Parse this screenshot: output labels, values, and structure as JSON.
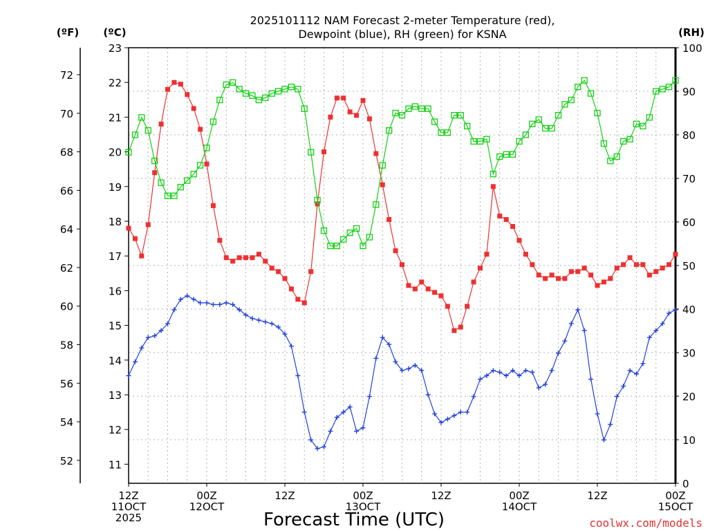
{
  "title_line1": "2025101112 NAM Forecast 2-meter Temperature (red),",
  "title_line2": "Dewpoint (blue), RH (green) for KSNA",
  "axis_units": {
    "f": "(ºF)",
    "c": "(ºC)",
    "rh": "(RH)"
  },
  "xlabel": "Forecast Time (UTC)",
  "watermark": "coolwx.com/models",
  "colors": {
    "temp": "#ee3030",
    "dewpoint": "#2040dd",
    "rh": "#10d010",
    "grid": "#b0b0b0"
  },
  "chart_data": {
    "type": "line",
    "x_hours": [
      0,
      1,
      2,
      3,
      4,
      5,
      6,
      7,
      8,
      9,
      10,
      11,
      12,
      13,
      14,
      15,
      16,
      17,
      18,
      19,
      20,
      21,
      22,
      23,
      24,
      25,
      26,
      27,
      28,
      29,
      30,
      31,
      32,
      33,
      34,
      35,
      36,
      37,
      38,
      39,
      40,
      41,
      42,
      43,
      44,
      45,
      46,
      47,
      48,
      49,
      50,
      51,
      52,
      53,
      54,
      55,
      56,
      57,
      58,
      59,
      60,
      61,
      62,
      63,
      64,
      65,
      66,
      67,
      68,
      69,
      70,
      71,
      72,
      73,
      74,
      75,
      76,
      77,
      78,
      79,
      80,
      81,
      82,
      83,
      84
    ],
    "xlim": [
      0,
      84
    ],
    "x_ticks": [
      {
        "hour": 0,
        "lines": [
          "12Z",
          "11OCT",
          "2025"
        ]
      },
      {
        "hour": 12,
        "lines": [
          "00Z",
          "12OCT"
        ]
      },
      {
        "hour": 24,
        "lines": [
          "12Z"
        ]
      },
      {
        "hour": 36,
        "lines": [
          "00Z",
          "13OCT"
        ]
      },
      {
        "hour": 48,
        "lines": [
          "12Z"
        ]
      },
      {
        "hour": 60,
        "lines": [
          "00Z",
          "14OCT"
        ]
      },
      {
        "hour": 72,
        "lines": [
          "12Z"
        ]
      },
      {
        "hour": 84,
        "lines": [
          "00Z",
          "15OCT"
        ]
      }
    ],
    "celsius_axis": {
      "ylim": [
        10.45,
        23.0
      ],
      "ticks": [
        11,
        12,
        13,
        14,
        15,
        16,
        17,
        18,
        19,
        20,
        21,
        22,
        23
      ]
    },
    "fahrenheit_ticks": [
      52,
      54,
      56,
      58,
      60,
      62,
      64,
      66,
      68,
      70,
      72
    ],
    "rh_axis": {
      "ylim": [
        0,
        100
      ],
      "ticks": [
        0,
        10,
        20,
        30,
        40,
        50,
        60,
        70,
        80,
        90,
        100
      ]
    },
    "series": [
      {
        "name": "Temperature",
        "axis": "celsius",
        "marker": "square-filled",
        "values": [
          17.8,
          17.5,
          17.0,
          17.9,
          19.4,
          20.8,
          21.8,
          22.0,
          21.95,
          21.65,
          21.25,
          20.65,
          19.65,
          18.45,
          17.45,
          16.95,
          16.85,
          16.95,
          16.95,
          16.95,
          17.05,
          16.85,
          16.65,
          16.55,
          16.35,
          16.05,
          15.75,
          15.65,
          16.55,
          18.5,
          20.0,
          21.0,
          21.55,
          21.55,
          21.15,
          21.05,
          21.48,
          20.95,
          19.95,
          19.05,
          18.05,
          17.15,
          16.75,
          16.15,
          16.05,
          16.25,
          16.05,
          15.95,
          15.85,
          15.55,
          14.85,
          14.95,
          15.55,
          16.25,
          16.65,
          17.05,
          19.0,
          18.15,
          18.05,
          17.85,
          17.45,
          17.05,
          16.75,
          16.45,
          16.35,
          16.45,
          16.35,
          16.35,
          16.55,
          16.55,
          16.65,
          16.45,
          16.15,
          16.25,
          16.35,
          16.65,
          16.75,
          16.95,
          16.75,
          16.75,
          16.45,
          16.55,
          16.65,
          16.75,
          17.05
        ]
      },
      {
        "name": "Dewpoint",
        "axis": "celsius",
        "marker": "plus",
        "values": [
          13.55,
          13.95,
          14.35,
          14.65,
          14.7,
          14.85,
          15.05,
          15.45,
          15.75,
          15.85,
          15.75,
          15.65,
          15.65,
          15.6,
          15.6,
          15.65,
          15.6,
          15.45,
          15.3,
          15.2,
          15.15,
          15.1,
          15.05,
          14.95,
          14.75,
          14.4,
          13.55,
          12.5,
          11.7,
          11.45,
          11.5,
          11.95,
          12.35,
          12.5,
          12.65,
          11.95,
          12.05,
          12.95,
          14.05,
          14.65,
          14.45,
          13.95,
          13.7,
          13.75,
          13.85,
          13.7,
          13.0,
          12.45,
          12.2,
          12.3,
          12.4,
          12.5,
          12.5,
          12.95,
          13.45,
          13.55,
          13.7,
          13.65,
          13.55,
          13.7,
          13.55,
          13.7,
          13.65,
          13.2,
          13.3,
          13.7,
          14.2,
          14.55,
          15.05,
          15.45,
          14.85,
          13.45,
          12.45,
          11.7,
          12.15,
          12.95,
          13.25,
          13.7,
          13.6,
          13.9,
          14.65,
          14.85,
          15.05,
          15.35,
          15.45
        ]
      },
      {
        "name": "RH",
        "axis": "rh",
        "marker": "square-open",
        "values": [
          76,
          80,
          84,
          81,
          74,
          69,
          66,
          66,
          68,
          69.5,
          71,
          73,
          77,
          83,
          88,
          91.5,
          92,
          90.5,
          89.5,
          89,
          88,
          88.5,
          89.5,
          90,
          90.5,
          91,
          90.5,
          86,
          76,
          65,
          58,
          54.5,
          54.5,
          56,
          57.5,
          58.5,
          54.5,
          56.5,
          64,
          73,
          81,
          85,
          84.5,
          86,
          86.5,
          86,
          86,
          83,
          80.5,
          80.5,
          84.5,
          84.5,
          82,
          78.5,
          78.5,
          79,
          71,
          75,
          75.5,
          75.5,
          78.5,
          80,
          82.5,
          83.5,
          81.5,
          81.5,
          84.5,
          87,
          88,
          91,
          92.5,
          89.5,
          85,
          78,
          74,
          75,
          78.5,
          79,
          82.5,
          82,
          84,
          90,
          90.5,
          91,
          92.5
        ]
      }
    ]
  }
}
